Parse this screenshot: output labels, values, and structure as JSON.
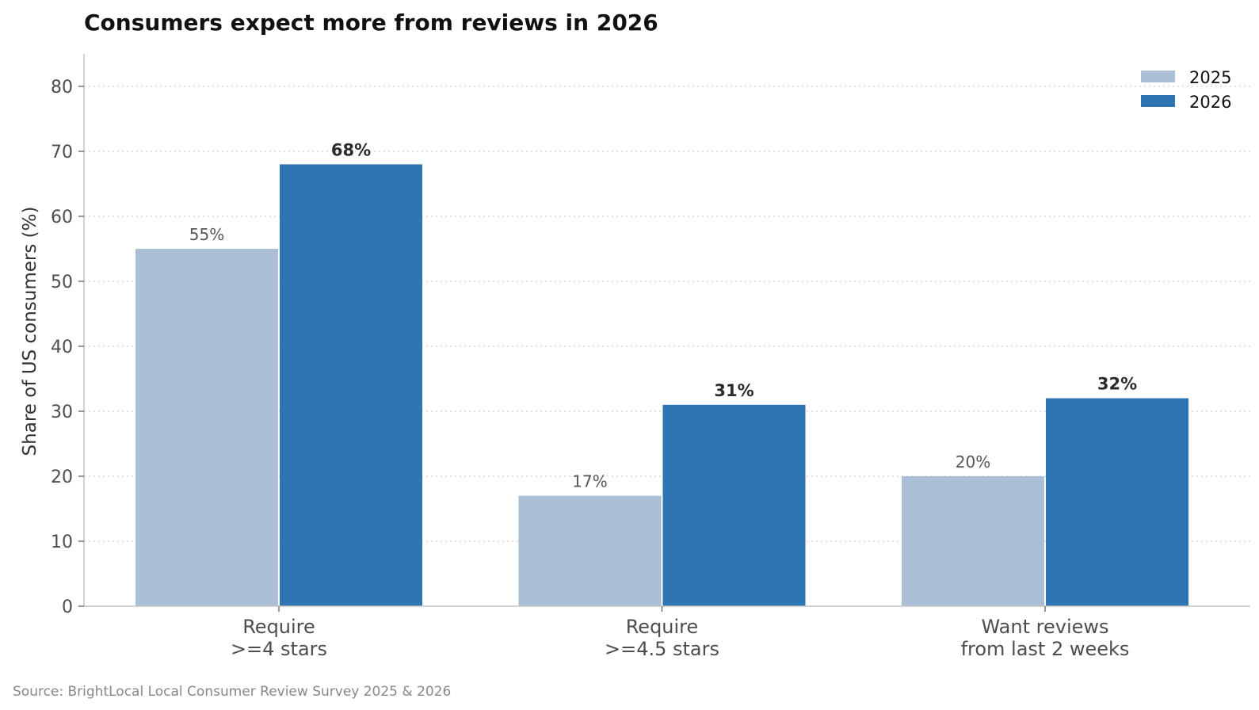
{
  "chart_data": {
    "type": "bar",
    "title": "Consumers expect more from reviews in 2026",
    "ylabel": "Share of US consumers (%)",
    "xlabel": "",
    "ylim": [
      0,
      85
    ],
    "yticks": [
      0,
      10,
      20,
      30,
      40,
      50,
      60,
      70,
      80
    ],
    "grid": "horizontal dotted",
    "legend_position": "top-right",
    "categories": [
      [
        "Require",
        ">=4 stars"
      ],
      [
        "Require",
        ">=4.5 stars"
      ],
      [
        "Want reviews",
        "from last 2 weeks"
      ]
    ],
    "series": [
      {
        "name": "2025",
        "color": "#aabfd6",
        "values": [
          55,
          17,
          20
        ],
        "labels": [
          "55%",
          "17%",
          "20%"
        ]
      },
      {
        "name": "2026",
        "color": "#2e75b4",
        "values": [
          68,
          31,
          32
        ],
        "labels": [
          "68%",
          "31%",
          "32%"
        ]
      }
    ],
    "source": "Source: BrightLocal Local Consumer Review Survey 2025 & 2026"
  }
}
